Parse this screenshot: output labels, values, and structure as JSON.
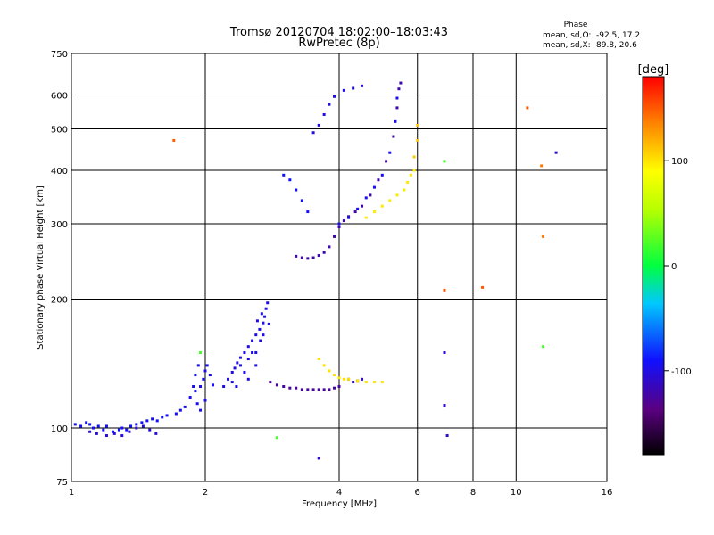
{
  "chart_data": {
    "type": "scatter",
    "title": "Tromsø 20120704 18:02:00–18:03:43",
    "subtitle": "RwPretec (8p)",
    "xlabel": "Frequency [MHz]",
    "ylabel": "Stationary phase Virtual Height [km]",
    "x_scale": "log",
    "y_scale": "log",
    "xlim": [
      1,
      16
    ],
    "ylim": [
      75,
      750
    ],
    "x_ticks": [
      "1",
      "2",
      "4",
      "6",
      "8",
      "10",
      "16"
    ],
    "x_tick_values": [
      1,
      2,
      4,
      6,
      8,
      10,
      16
    ],
    "y_ticks": [
      "75",
      "100",
      "200",
      "300",
      "400",
      "500",
      "600",
      "750"
    ],
    "y_tick_values": [
      75,
      100,
      200,
      300,
      400,
      500,
      600,
      750
    ],
    "grid": true,
    "stats": {
      "heading": "Phase",
      "o_label": "mean, sd,O:",
      "o_values": "-92.5, 17.2",
      "x_label": "mean, sd,X:",
      "x_values": "89.8, 20.6"
    },
    "colorbar": {
      "label": "[deg]",
      "range": [
        -180,
        180
      ],
      "ticks": [
        "100",
        "0",
        "-100"
      ],
      "tick_values": [
        100,
        0,
        -100
      ]
    },
    "traces": [
      {
        "phase": -90,
        "points": [
          [
            1.02,
            102
          ],
          [
            1.05,
            101
          ],
          [
            1.08,
            103
          ],
          [
            1.1,
            102
          ],
          [
            1.12,
            100
          ],
          [
            1.15,
            101
          ],
          [
            1.18,
            99
          ],
          [
            1.2,
            101
          ],
          [
            1.24,
            98
          ],
          [
            1.28,
            99
          ],
          [
            1.3,
            100
          ],
          [
            1.33,
            99
          ],
          [
            1.36,
            101
          ],
          [
            1.4,
            102
          ],
          [
            1.44,
            103
          ],
          [
            1.48,
            104
          ],
          [
            1.52,
            105
          ],
          [
            1.56,
            104
          ],
          [
            1.6,
            106
          ],
          [
            1.64,
            107
          ]
        ]
      },
      {
        "phase": -105,
        "points": [
          [
            1.1,
            98
          ],
          [
            1.14,
            97
          ],
          [
            1.2,
            96
          ],
          [
            1.25,
            97
          ],
          [
            1.3,
            96
          ],
          [
            1.35,
            98
          ],
          [
            1.4,
            100
          ],
          [
            1.45,
            101
          ],
          [
            1.5,
            99
          ],
          [
            1.55,
            97
          ]
        ]
      },
      {
        "phase": -95,
        "points": [
          [
            1.72,
            108
          ],
          [
            1.76,
            110
          ],
          [
            1.8,
            112
          ],
          [
            1.85,
            118
          ],
          [
            1.9,
            122
          ],
          [
            1.95,
            125
          ],
          [
            1.98,
            130
          ],
          [
            2.0,
            136
          ],
          [
            2.02,
            140
          ],
          [
            2.05,
            133
          ],
          [
            2.08,
            126
          ],
          [
            1.92,
            114
          ],
          [
            1.95,
            110
          ],
          [
            2.0,
            116
          ],
          [
            1.88,
            125
          ],
          [
            1.9,
            133
          ],
          [
            1.93,
            140
          ]
        ]
      },
      {
        "phase": -98,
        "points": [
          [
            2.2,
            125
          ],
          [
            2.25,
            130
          ],
          [
            2.3,
            135
          ],
          [
            2.33,
            138
          ],
          [
            2.36,
            142
          ],
          [
            2.4,
            146
          ],
          [
            2.45,
            150
          ],
          [
            2.5,
            155
          ],
          [
            2.55,
            160
          ],
          [
            2.6,
            165
          ],
          [
            2.65,
            170
          ],
          [
            2.7,
            176
          ],
          [
            2.72,
            182
          ],
          [
            2.74,
            190
          ],
          [
            2.76,
            196
          ],
          [
            2.78,
            175
          ],
          [
            2.3,
            128
          ],
          [
            2.35,
            125
          ],
          [
            2.45,
            135
          ],
          [
            2.5,
            145
          ],
          [
            2.55,
            150
          ],
          [
            2.6,
            140
          ],
          [
            2.66,
            160
          ],
          [
            2.7,
            165
          ],
          [
            2.4,
            140
          ],
          [
            2.5,
            130
          ],
          [
            2.6,
            150
          ],
          [
            2.62,
            178
          ],
          [
            2.68,
            185
          ]
        ]
      },
      {
        "phase": -125,
        "points": [
          [
            2.8,
            128
          ],
          [
            2.9,
            126
          ],
          [
            3.0,
            125
          ],
          [
            3.1,
            124
          ],
          [
            3.2,
            124
          ],
          [
            3.3,
            123
          ],
          [
            3.4,
            123
          ],
          [
            3.5,
            123
          ],
          [
            3.6,
            123
          ],
          [
            3.7,
            123
          ],
          [
            3.8,
            123
          ],
          [
            3.9,
            124
          ],
          [
            4.0,
            125
          ]
        ]
      },
      {
        "phase": -110,
        "points": [
          [
            4.2,
            130
          ],
          [
            4.3,
            128
          ],
          [
            4.4,
            129
          ],
          [
            4.5,
            130
          ]
        ]
      },
      {
        "phase": -120,
        "points": [
          [
            3.2,
            252
          ],
          [
            3.3,
            250
          ],
          [
            3.4,
            249
          ],
          [
            3.5,
            250
          ],
          [
            3.6,
            253
          ],
          [
            3.7,
            257
          ],
          [
            3.8,
            265
          ],
          [
            3.9,
            280
          ],
          [
            4.0,
            295
          ],
          [
            4.1,
            305
          ],
          [
            4.2,
            312
          ],
          [
            4.35,
            320
          ],
          [
            4.5,
            330
          ],
          [
            4.7,
            350
          ],
          [
            4.9,
            380
          ],
          [
            5.1,
            420
          ],
          [
            5.3,
            480
          ],
          [
            5.4,
            560
          ],
          [
            5.45,
            620
          ],
          [
            5.5,
            640
          ]
        ]
      },
      {
        "phase": -100,
        "points": [
          [
            3.5,
            490
          ],
          [
            3.6,
            510
          ],
          [
            3.7,
            540
          ],
          [
            3.8,
            570
          ],
          [
            3.9,
            595
          ],
          [
            4.1,
            615
          ],
          [
            4.3,
            622
          ],
          [
            4.5,
            630
          ]
        ]
      },
      {
        "phase": -90,
        "points": [
          [
            3.0,
            390
          ],
          [
            3.1,
            380
          ],
          [
            3.2,
            360
          ],
          [
            3.3,
            340
          ],
          [
            3.4,
            320
          ]
        ]
      },
      {
        "phase": -95,
        "points": [
          [
            4.0,
            300
          ],
          [
            4.2,
            310
          ],
          [
            4.4,
            325
          ],
          [
            4.6,
            345
          ],
          [
            4.8,
            365
          ],
          [
            5.0,
            390
          ],
          [
            5.2,
            440
          ],
          [
            5.35,
            520
          ],
          [
            5.4,
            590
          ]
        ]
      },
      {
        "phase": 100,
        "points": [
          [
            3.6,
            145
          ],
          [
            3.7,
            140
          ],
          [
            3.8,
            136
          ],
          [
            3.9,
            133
          ],
          [
            4.0,
            131
          ],
          [
            4.1,
            130
          ],
          [
            4.2,
            130
          ],
          [
            4.4,
            129
          ],
          [
            4.6,
            128
          ],
          [
            4.8,
            128
          ],
          [
            5.0,
            128
          ]
        ]
      },
      {
        "phase": 98,
        "points": [
          [
            4.6,
            310
          ],
          [
            4.8,
            320
          ],
          [
            5.0,
            330
          ],
          [
            5.2,
            340
          ],
          [
            5.4,
            350
          ],
          [
            5.6,
            360
          ],
          [
            5.7,
            375
          ],
          [
            5.8,
            390
          ],
          [
            5.9,
            400
          ]
        ]
      },
      {
        "phase": 110,
        "points": [
          [
            5.9,
            430
          ],
          [
            6.0,
            470
          ],
          [
            6.0,
            510
          ]
        ]
      },
      {
        "phase": 150,
        "points": [
          [
            1.7,
            470
          ],
          [
            6.9,
            210
          ],
          [
            8.4,
            213
          ],
          [
            10.6,
            560
          ]
        ]
      },
      {
        "phase": 140,
        "points": [
          [
            11.4,
            410
          ],
          [
            11.5,
            280
          ]
        ]
      },
      {
        "phase": -110,
        "points": [
          [
            12.3,
            440
          ],
          [
            6.9,
            150
          ],
          [
            7.0,
            96
          ],
          [
            6.9,
            113
          ],
          [
            3.6,
            85
          ]
        ]
      },
      {
        "phase": 20,
        "points": [
          [
            11.5,
            155
          ],
          [
            6.9,
            420
          ],
          [
            2.9,
            95
          ],
          [
            1.95,
            150
          ]
        ]
      }
    ]
  }
}
